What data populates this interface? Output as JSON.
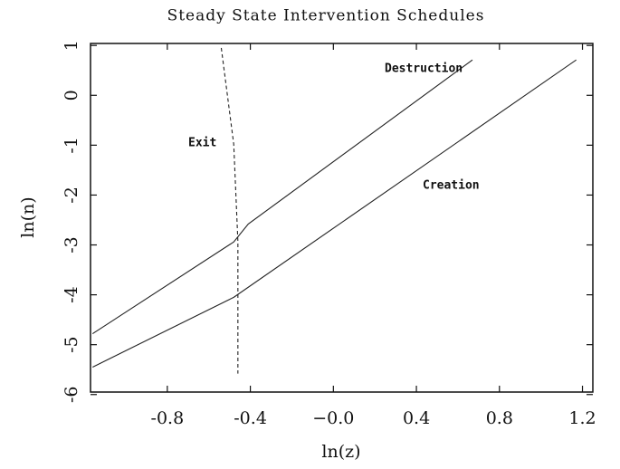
{
  "chart_data": {
    "type": "line",
    "title": "Steady State Intervention Schedules",
    "xlabel": "ln(z)",
    "ylabel": "ln(n)",
    "xlim": [
      -1.17,
      1.25
    ],
    "xticks": [
      -0.8,
      -0.4,
      {
        "value": 0,
        "label": "−0.0"
      },
      0.4,
      0.8,
      1.2
    ],
    "ylim": [
      -5.95,
      1.04
    ],
    "yticks": [
      1,
      0,
      -1,
      -2,
      -3,
      -4,
      -5,
      -6
    ],
    "series": [
      {
        "name": "Destruction",
        "color": "#222222",
        "dash": false,
        "x": [
          -1.16,
          -0.48,
          -0.41,
          0.67
        ],
        "values": [
          -4.78,
          -2.94,
          -2.58,
          0.71
        ]
      },
      {
        "name": "Creation",
        "color": "#222222",
        "dash": false,
        "x": [
          -1.16,
          -0.48,
          1.17
        ],
        "values": [
          -5.45,
          -4.05,
          0.71
        ]
      },
      {
        "name": "Exit",
        "color": "#222222",
        "dash": true,
        "x": [
          -0.54,
          -0.48,
          -0.46,
          -0.46
        ],
        "values": [
          0.95,
          -0.98,
          -2.93,
          -5.58
        ]
      }
    ]
  }
}
